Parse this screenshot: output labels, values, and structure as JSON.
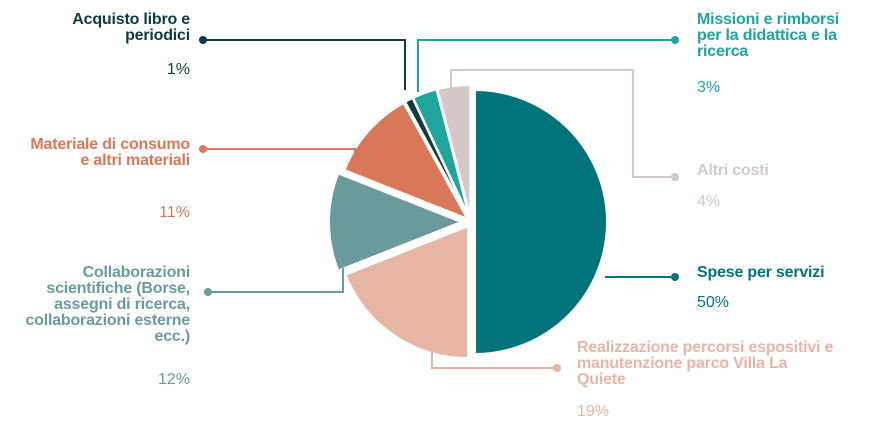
{
  "chart_data": {
    "type": "pie",
    "categories": [
      "Spese per servizi",
      "Realizzazione percorsi espositivi e manutenzione parco Villa La Quiete",
      "Collaborazioni scientifiche (Borse, assegni di ricerca, collaborazioni esterne ecc.)",
      "Materiale di consumo e altri materiali",
      "Acquisto libro e periodici",
      "Missioni e rimborsi per la didattica e la ricerca",
      "Altri costi"
    ],
    "values": [
      50,
      19,
      12,
      11,
      1,
      3,
      4
    ],
    "value_labels": [
      "50%",
      "19%",
      "12%",
      "11%",
      "1%",
      "3%",
      "4%"
    ],
    "colors": [
      "#00747a",
      "#e7b5a4",
      "#6b9a9d",
      "#d97858",
      "#0c3b40",
      "#1ea59c",
      "#d5c8c8"
    ]
  }
}
